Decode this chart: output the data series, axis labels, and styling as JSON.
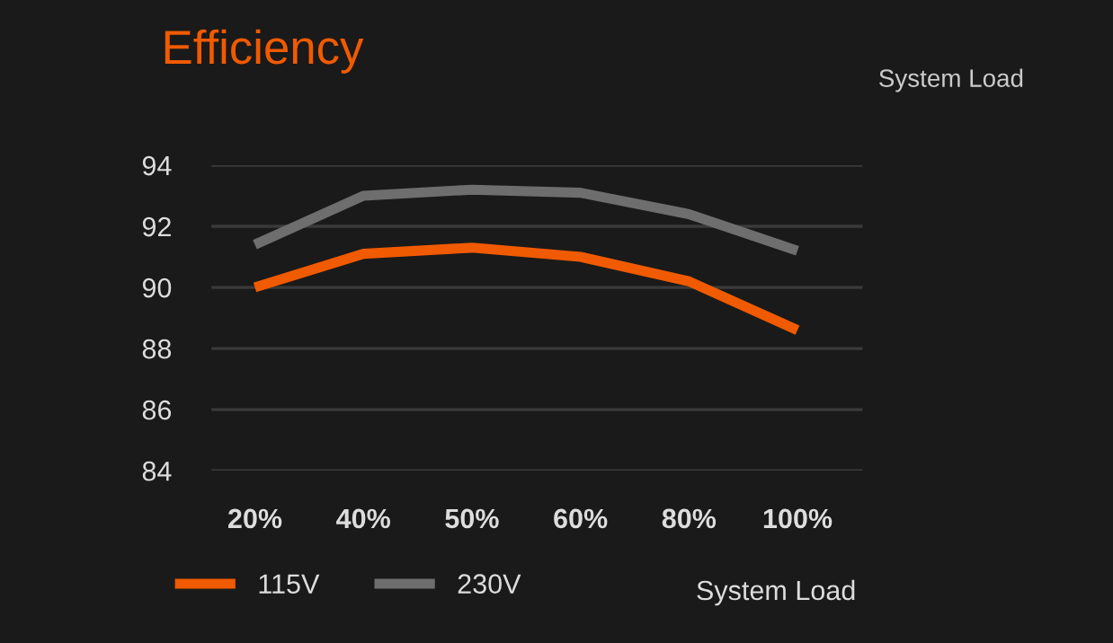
{
  "chart_data": {
    "type": "line",
    "title": "Efficiency",
    "xlabel": "System Load",
    "annotations": [
      "System Load"
    ],
    "categories": [
      "20%",
      "40%",
      "50%",
      "60%",
      "80%",
      "100%"
    ],
    "series": [
      {
        "name": "115V",
        "color": "#f05a00",
        "values": [
          90.0,
          91.1,
          91.3,
          91.0,
          90.2,
          88.6
        ]
      },
      {
        "name": "230V",
        "color": "#6e6e6e",
        "values": [
          91.4,
          93.0,
          93.2,
          93.1,
          92.4,
          91.2
        ]
      }
    ],
    "ylim": [
      84,
      94
    ],
    "yticks": [
      84,
      86,
      88,
      90,
      92,
      94
    ],
    "grid": "y",
    "legend": "bottom",
    "marker": "none",
    "line_style": "solid"
  }
}
